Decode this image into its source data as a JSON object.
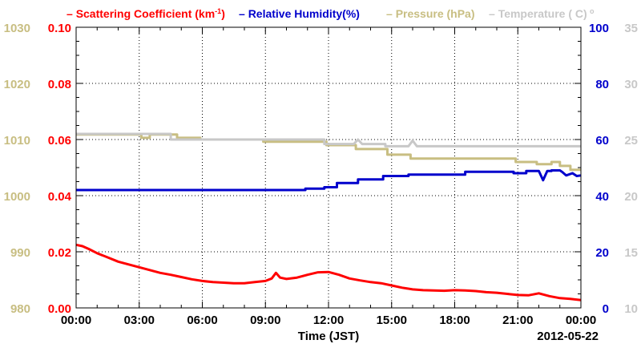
{
  "chart_data": {
    "type": "line",
    "legend": [
      {
        "name": "Scattering Coefficient (km",
        "sup": "-1",
        "close": ")",
        "color": "#ff0000"
      },
      {
        "name": "Relative Humidity(%)",
        "color": "#0000cc"
      },
      {
        "name": "Pressure (hPa)",
        "color": "#c8be82"
      },
      {
        "name": "Temperature (  C)",
        "color": "#c8c8c8"
      }
    ],
    "xlabel": "Time (JST)",
    "date_label": "2012-05-22",
    "x_ticks": [
      "00:00",
      "03:00",
      "06:00",
      "09:00",
      "12:00",
      "15:00",
      "18:00",
      "21:00",
      "00:00"
    ],
    "xlim": [
      0,
      24
    ],
    "axes": {
      "pressure": {
        "ticks": [
          "980",
          "990",
          "1000",
          "1010",
          "1020",
          "1030"
        ],
        "ylim": [
          980,
          1030
        ],
        "color": "#c8be82"
      },
      "scattering": {
        "ticks": [
          "0.00",
          "0.02",
          "0.04",
          "0.06",
          "0.08",
          "0.10"
        ],
        "ylim": [
          0,
          0.1
        ],
        "color": "#ff0000"
      },
      "humidity": {
        "ticks": [
          "0",
          "20",
          "40",
          "60",
          "80",
          "100"
        ],
        "ylim": [
          0,
          100
        ],
        "color": "#0000cc"
      },
      "temperature": {
        "ticks": [
          "10",
          "15",
          "20",
          "25",
          "30",
          "35"
        ],
        "ylim": [
          10,
          35
        ],
        "color": "#c8c8c8"
      }
    },
    "grid": true,
    "series": [
      {
        "name": "Pressure (hPa)",
        "axis": "pressure",
        "color": "#c8be82",
        "step": true,
        "x": [
          0,
          3.1,
          3.1,
          3.5,
          3.5,
          4.8,
          4.8,
          5.9,
          5.9,
          8.9,
          8.9,
          11.9,
          11.9,
          13.3,
          13.3,
          14.8,
          14.8,
          15.9,
          15.9,
          20.9,
          20.9,
          21.9,
          21.9,
          22.6,
          22.6,
          23.0,
          23.0,
          23.5,
          23.5,
          24
        ],
        "y": [
          1010.9,
          1010.9,
          1010.3,
          1010.3,
          1010.9,
          1010.9,
          1010.3,
          1010.3,
          1010.0,
          1010.0,
          1009.6,
          1009.6,
          1009.0,
          1009.0,
          1008.3,
          1008.3,
          1007.3,
          1007.3,
          1006.6,
          1006.6,
          1006.0,
          1006.0,
          1005.6,
          1005.6,
          1006.0,
          1006.0,
          1005.3,
          1005.3,
          1004.6,
          1004.6
        ]
      },
      {
        "name": "Temperature (C)",
        "axis": "temperature",
        "color": "#c8c8c8",
        "step": true,
        "x": [
          0,
          4.5,
          4.5,
          11.8,
          11.8,
          13.2,
          13.4,
          13.6,
          14.7,
          14.7,
          15.8,
          16.0,
          16.2,
          16.3,
          16.3,
          24
        ],
        "y": [
          25.5,
          25.5,
          25.0,
          25.0,
          24.6,
          24.6,
          25.0,
          24.6,
          24.6,
          24.4,
          24.4,
          24.9,
          24.4,
          24.4,
          24.4,
          24.4
        ]
      },
      {
        "name": "Relative Humidity(%)",
        "axis": "humidity",
        "color": "#0000cc",
        "step": true,
        "x": [
          0,
          10.9,
          10.9,
          11.8,
          11.8,
          12.4,
          12.4,
          13.4,
          13.4,
          14.6,
          14.6,
          15.8,
          15.8,
          18.5,
          18.5,
          20.8,
          20.8,
          21.4,
          21.4,
          22.0,
          22.2,
          22.4,
          22.6,
          22.6,
          23.0,
          23.1,
          23.3,
          23.6,
          23.8,
          24
        ],
        "y": [
          42,
          42,
          42.5,
          42.5,
          43,
          43,
          44.5,
          44.5,
          45.8,
          45.8,
          47,
          47,
          47.5,
          47.5,
          48.5,
          48.5,
          48.0,
          48.0,
          48.8,
          48.8,
          45.5,
          48.8,
          48.8,
          49.0,
          49.0,
          48.5,
          47.2,
          48.0,
          47.0,
          47.2
        ]
      },
      {
        "name": "Scattering Coefficient",
        "axis": "scattering",
        "color": "#ff0000",
        "step": false,
        "x": [
          0,
          0.3,
          0.6,
          1.0,
          1.5,
          2.0,
          2.5,
          3.0,
          3.5,
          4.0,
          4.5,
          5.0,
          5.5,
          6.0,
          6.5,
          7.0,
          7.5,
          8.0,
          8.5,
          9.0,
          9.3,
          9.5,
          9.7,
          10.0,
          10.5,
          11.0,
          11.5,
          12.0,
          12.5,
          13.0,
          13.5,
          14.0,
          14.5,
          15.0,
          15.5,
          16.0,
          16.5,
          17.0,
          17.5,
          18.0,
          18.5,
          19.0,
          19.5,
          20.0,
          20.5,
          21.0,
          21.5,
          22.0,
          22.5,
          23.0,
          23.5,
          24.0
        ],
        "y": [
          0.0225,
          0.022,
          0.021,
          0.0195,
          0.018,
          0.0165,
          0.0155,
          0.0145,
          0.0135,
          0.0125,
          0.0118,
          0.011,
          0.0102,
          0.0096,
          0.0092,
          0.009,
          0.0088,
          0.0088,
          0.0092,
          0.0096,
          0.0105,
          0.0125,
          0.0108,
          0.0103,
          0.0108,
          0.0118,
          0.0127,
          0.0128,
          0.0118,
          0.0105,
          0.0098,
          0.0092,
          0.0088,
          0.008,
          0.0072,
          0.0066,
          0.0063,
          0.0062,
          0.0061,
          0.0063,
          0.0062,
          0.006,
          0.0056,
          0.0054,
          0.005,
          0.0046,
          0.0045,
          0.0052,
          0.0042,
          0.0035,
          0.0032,
          0.0028
        ]
      }
    ]
  }
}
